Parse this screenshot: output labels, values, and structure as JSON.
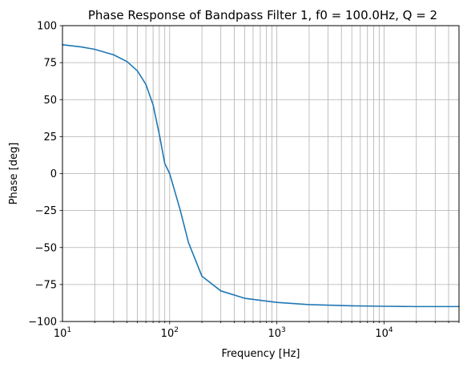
{
  "chart_data": {
    "type": "line",
    "title": "Phase Response of Bandpass Filter 1, f0 = 100.0Hz, Q = 2",
    "xlabel": "Frequency [Hz]",
    "ylabel": "Phase [deg]",
    "x_scale": "log",
    "xlim": [
      10,
      50000
    ],
    "ylim": [
      -100,
      100
    ],
    "grid": "both (major and minor on x)",
    "x_ticks": [
      {
        "base": "10",
        "exp": "1"
      },
      {
        "base": "10",
        "exp": "2"
      },
      {
        "base": "10",
        "exp": "3"
      },
      {
        "base": "10",
        "exp": "4"
      }
    ],
    "y_ticks": [
      "100",
      "75",
      "50",
      "25",
      "0",
      "−25",
      "−50",
      "−75",
      "−100"
    ],
    "series": [
      {
        "color": "#1f77b4",
        "x": [
          10,
          15,
          20,
          30,
          40,
          50,
          60,
          70,
          80,
          90,
          100,
          110,
          125,
          150,
          200,
          300,
          500,
          1000,
          2000,
          5000,
          10000,
          20000,
          50000
        ],
        "y": [
          87.1,
          85.6,
          84.0,
          80.3,
          75.7,
          69.4,
          60.3,
          46.5,
          26.6,
          6.8,
          0,
          -10.4,
          -24.3,
          -46.8,
          -69.4,
          -79.3,
          -84.3,
          -87.1,
          -88.6,
          -89.4,
          -89.7,
          -89.9,
          -89.9
        ]
      }
    ]
  }
}
